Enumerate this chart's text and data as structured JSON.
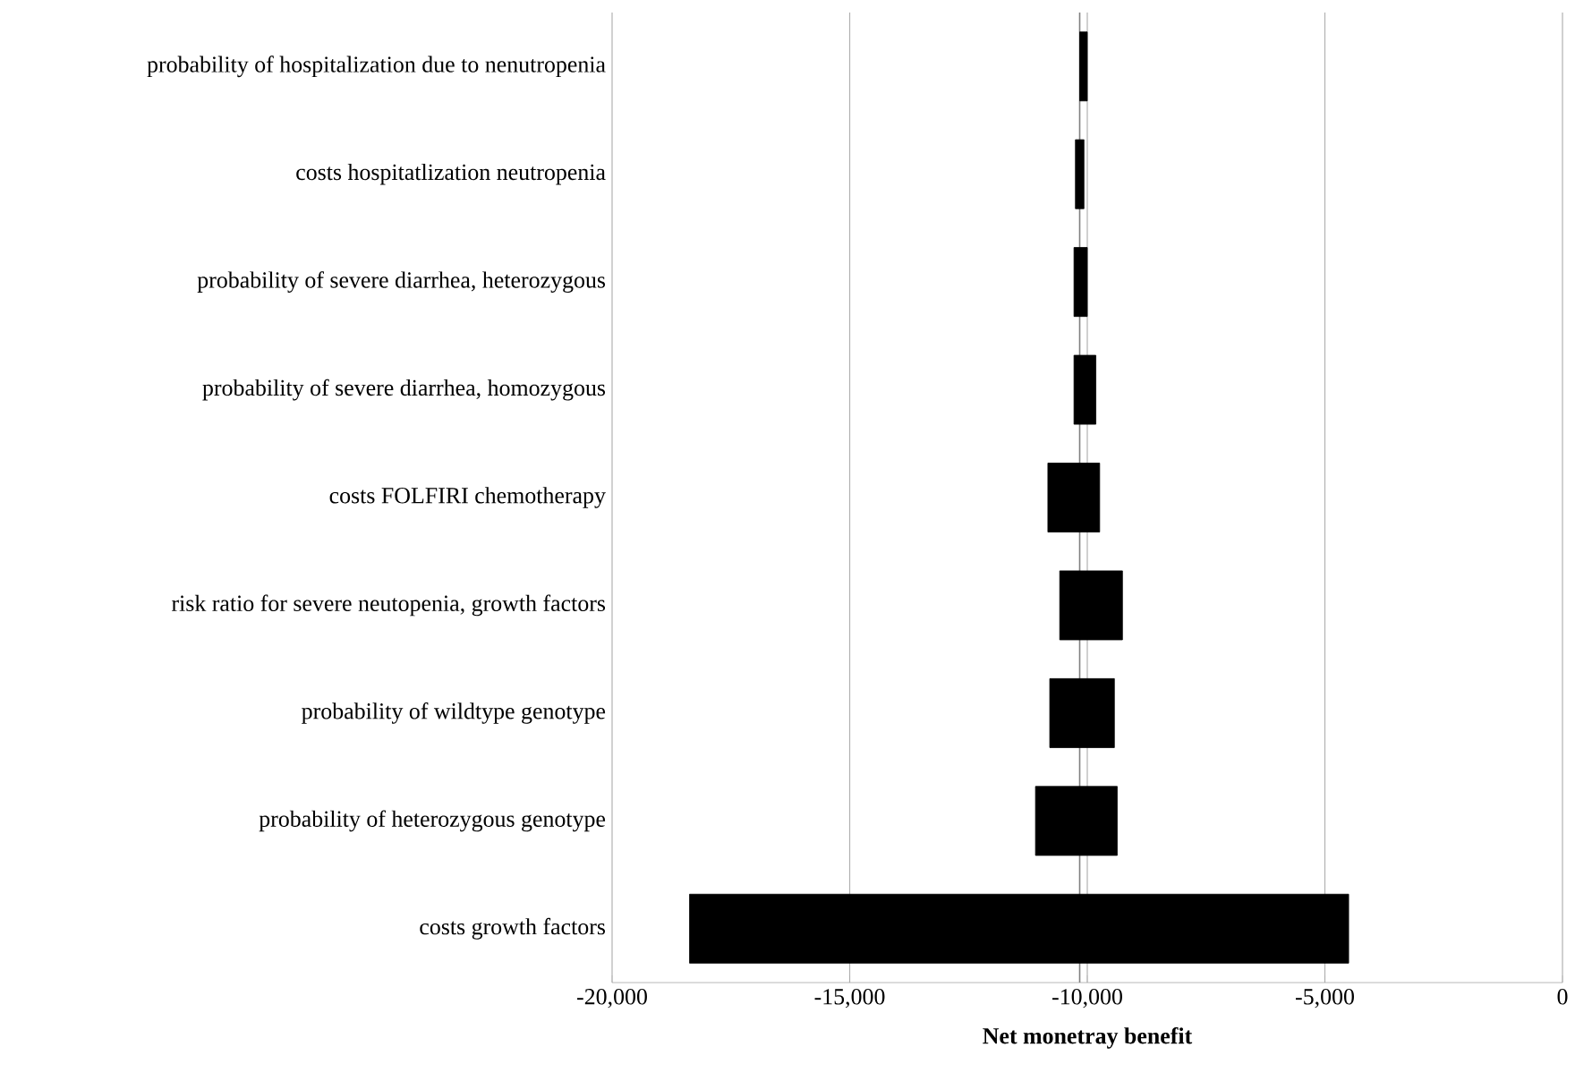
{
  "chart_data": {
    "type": "bar",
    "orientation": "horizontal",
    "xlabel": "Net monetray benefit",
    "categories": [
      "probability of hospitalization due to nenutropenia",
      "costs hospitatlization neutropenia",
      "probability of severe diarrhea, heterozygous",
      "probability of severe diarrhea, homozygous",
      "costs FOLFIRI chemotherapy",
      "risk ratio for severe neutopenia, growth factors",
      "probability of wildtype genotype",
      "probability of heterozygous genotype",
      "costs growth factors"
    ],
    "base": [
      -10160,
      -10250,
      -10280,
      -10280,
      -10830,
      -10580,
      -10790,
      -11090,
      -18370
    ],
    "values": [
      160,
      180,
      280,
      460,
      1090,
      1320,
      1360,
      1720,
      13870
    ],
    "color": "#000000",
    "xlim": [
      -20000,
      0
    ],
    "xticks": [
      {
        "value": -20000,
        "label": "-20,000"
      },
      {
        "value": -15000,
        "label": "-15,000"
      },
      {
        "value": -10000,
        "label": "-10,000"
      },
      {
        "value": -5000,
        "label": "-5,000"
      },
      0
    ],
    "grid": "x",
    "ref_lines": [
      {
        "axis": "x",
        "value": -10160,
        "color": "#808080"
      }
    ]
  }
}
